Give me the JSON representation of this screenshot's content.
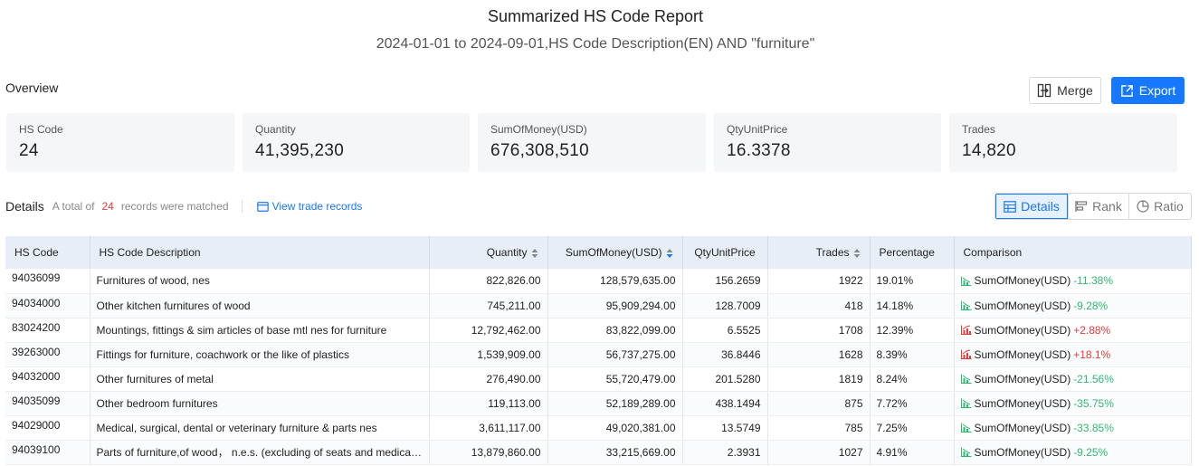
{
  "header": {
    "title": "Summarized HS Code Report",
    "subtitle": "2024-01-01 to 2024-09-01,HS Code Description(EN) AND \"furniture\""
  },
  "overview": {
    "label": "Overview",
    "merge_label": "Merge",
    "export_label": "Export",
    "cards": [
      {
        "label": "HS Code",
        "value": "24"
      },
      {
        "label": "Quantity",
        "value": "41,395,230"
      },
      {
        "label": "SumOfMoney(USD)",
        "value": "676,308,510"
      },
      {
        "label": "QtyUnitPrice",
        "value": "16.3378"
      },
      {
        "label": "Trades",
        "value": "14,820"
      }
    ]
  },
  "details": {
    "title": "Details",
    "prefix": "A total of",
    "count": "24",
    "suffix": "records were matched",
    "view_link": "View trade records",
    "tabs": [
      "Details",
      "Rank",
      "Ratio"
    ],
    "active_tab": "Details"
  },
  "table": {
    "columns": [
      "HS Code",
      "HS Code Description",
      "Quantity",
      "SumOfMoney(USD)",
      "QtyUnitPrice",
      "Trades",
      "Percentage",
      "Comparison"
    ],
    "rows": [
      {
        "code": "94036099",
        "desc": "Furnitures of wood, nes",
        "qty": "822,826.00",
        "money": "128,579,635.00",
        "unit": "156.2659",
        "trades": "1922",
        "pct": "19.01%",
        "cmp_label": "SumOfMoney(USD)",
        "cmp_change": "-11.38%",
        "dir": "down"
      },
      {
        "code": "94034000",
        "desc": "Other kitchen furnitures of wood",
        "qty": "745,211.00",
        "money": "95,909,294.00",
        "unit": "128.7009",
        "trades": "418",
        "pct": "14.18%",
        "cmp_label": "SumOfMoney(USD)",
        "cmp_change": "-9.28%",
        "dir": "down"
      },
      {
        "code": "83024200",
        "desc": "Mountings, fittings & sim articles of base mtl nes for furniture",
        "qty": "12,792,462.00",
        "money": "83,822,099.00",
        "unit": "6.5525",
        "trades": "1708",
        "pct": "12.39%",
        "cmp_label": "SumOfMoney(USD)",
        "cmp_change": "+2.88%",
        "dir": "up"
      },
      {
        "code": "39263000",
        "desc": "Fittings for furniture, coachwork or the like of plastics",
        "qty": "1,539,909.00",
        "money": "56,737,275.00",
        "unit": "36.8446",
        "trades": "1628",
        "pct": "8.39%",
        "cmp_label": "SumOfMoney(USD)",
        "cmp_change": "+18.1%",
        "dir": "up"
      },
      {
        "code": "94032000",
        "desc": "Other furnitures of metal",
        "qty": "276,490.00",
        "money": "55,720,479.00",
        "unit": "201.5280",
        "trades": "1819",
        "pct": "8.24%",
        "cmp_label": "SumOfMoney(USD)",
        "cmp_change": "-21.56%",
        "dir": "down"
      },
      {
        "code": "94035099",
        "desc": "Other bedroom furnitures",
        "qty": "119,113.00",
        "money": "52,189,289.00",
        "unit": "438.1494",
        "trades": "875",
        "pct": "7.72%",
        "cmp_label": "SumOfMoney(USD)",
        "cmp_change": "-35.75%",
        "dir": "down"
      },
      {
        "code": "94029000",
        "desc": "Medical, surgical, dental or veterinary furniture & parts nes",
        "qty": "3,611,117.00",
        "money": "49,020,381.00",
        "unit": "13.5749",
        "trades": "785",
        "pct": "7.25%",
        "cmp_label": "SumOfMoney(USD)",
        "cmp_change": "-33.85%",
        "dir": "down"
      },
      {
        "code": "94039100",
        "desc": "Parts of furniture,of wood， n.e.s. (excluding of seats and medical, surgical",
        "qty": "13,879,860.00",
        "money": "33,215,669.00",
        "unit": "2.3931",
        "trades": "1027",
        "pct": "4.91%",
        "cmp_label": "SumOfMoney(USD)",
        "cmp_change": "-9.25%",
        "dir": "down"
      }
    ]
  },
  "colors": {
    "accent": "#1677ff",
    "negative": "#2eb872",
    "positive": "#e53935"
  }
}
